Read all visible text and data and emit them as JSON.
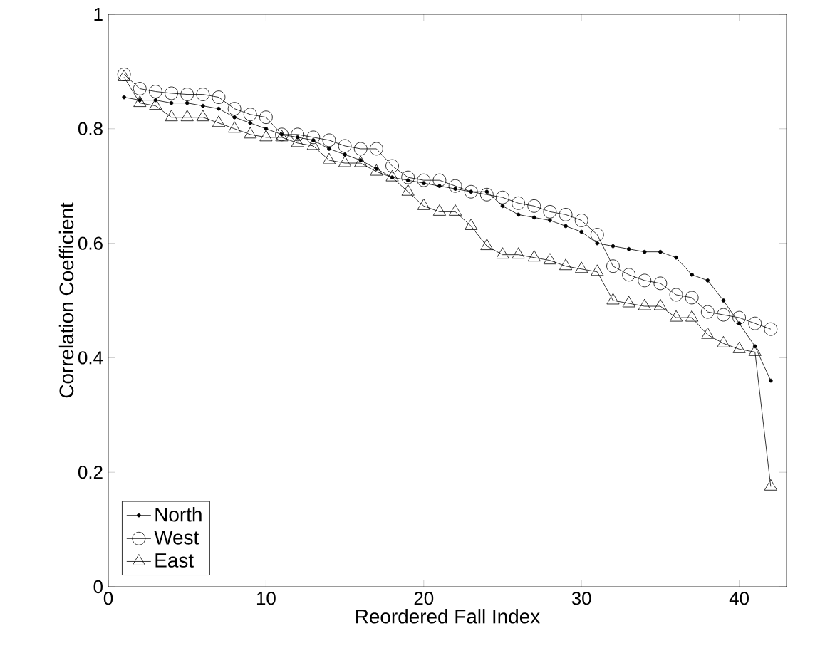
{
  "chart_data": {
    "type": "line",
    "xlabel": "Reordered Fall Index",
    "ylabel": "Correlation Coefficient",
    "xlim": [
      0,
      43
    ],
    "ylim": [
      0,
      1
    ],
    "xticks": [
      0,
      10,
      20,
      30,
      40
    ],
    "yticks": [
      0,
      0.2,
      0.4,
      0.6,
      0.8,
      1
    ],
    "grid": false,
    "legend": "bottom left",
    "line_style": "solid",
    "x": [
      1,
      2,
      3,
      4,
      5,
      6,
      7,
      8,
      9,
      10,
      11,
      12,
      13,
      14,
      15,
      16,
      17,
      18,
      19,
      20,
      21,
      22,
      23,
      24,
      25,
      26,
      27,
      28,
      29,
      30,
      31,
      32,
      33,
      34,
      35,
      36,
      37,
      38,
      39,
      40,
      41,
      42
    ],
    "series": [
      {
        "name": "North",
        "color": "#000000",
        "marker": "point",
        "values": [
          0.855,
          0.85,
          0.85,
          0.845,
          0.845,
          0.84,
          0.835,
          0.82,
          0.81,
          0.8,
          0.79,
          0.785,
          0.78,
          0.765,
          0.755,
          0.745,
          0.73,
          0.715,
          0.71,
          0.705,
          0.7,
          0.695,
          0.69,
          0.69,
          0.665,
          0.65,
          0.645,
          0.64,
          0.63,
          0.62,
          0.6,
          0.595,
          0.59,
          0.585,
          0.585,
          0.575,
          0.545,
          0.535,
          0.5,
          0.46,
          0.42,
          0.36
        ]
      },
      {
        "name": "West",
        "color": "#000000",
        "marker": "circle",
        "values": [
          0.895,
          0.87,
          0.865,
          0.862,
          0.86,
          0.86,
          0.855,
          0.835,
          0.825,
          0.82,
          0.79,
          0.79,
          0.785,
          0.78,
          0.77,
          0.765,
          0.765,
          0.735,
          0.715,
          0.71,
          0.71,
          0.7,
          0.69,
          0.685,
          0.68,
          0.67,
          0.665,
          0.655,
          0.65,
          0.64,
          0.615,
          0.56,
          0.545,
          0.535,
          0.53,
          0.51,
          0.505,
          0.48,
          0.475,
          0.47,
          0.46,
          0.45
        ]
      },
      {
        "name": "East",
        "color": "#000000",
        "marker": "triangle",
        "values": [
          0.89,
          0.845,
          0.84,
          0.82,
          0.82,
          0.82,
          0.81,
          0.8,
          0.79,
          0.785,
          0.785,
          0.775,
          0.77,
          0.745,
          0.74,
          0.74,
          0.725,
          0.715,
          0.69,
          0.665,
          0.655,
          0.655,
          0.63,
          0.595,
          0.58,
          0.58,
          0.575,
          0.57,
          0.56,
          0.555,
          0.55,
          0.5,
          0.495,
          0.49,
          0.49,
          0.47,
          0.47,
          0.44,
          0.425,
          0.415,
          0.41,
          0.175
        ]
      }
    ]
  }
}
